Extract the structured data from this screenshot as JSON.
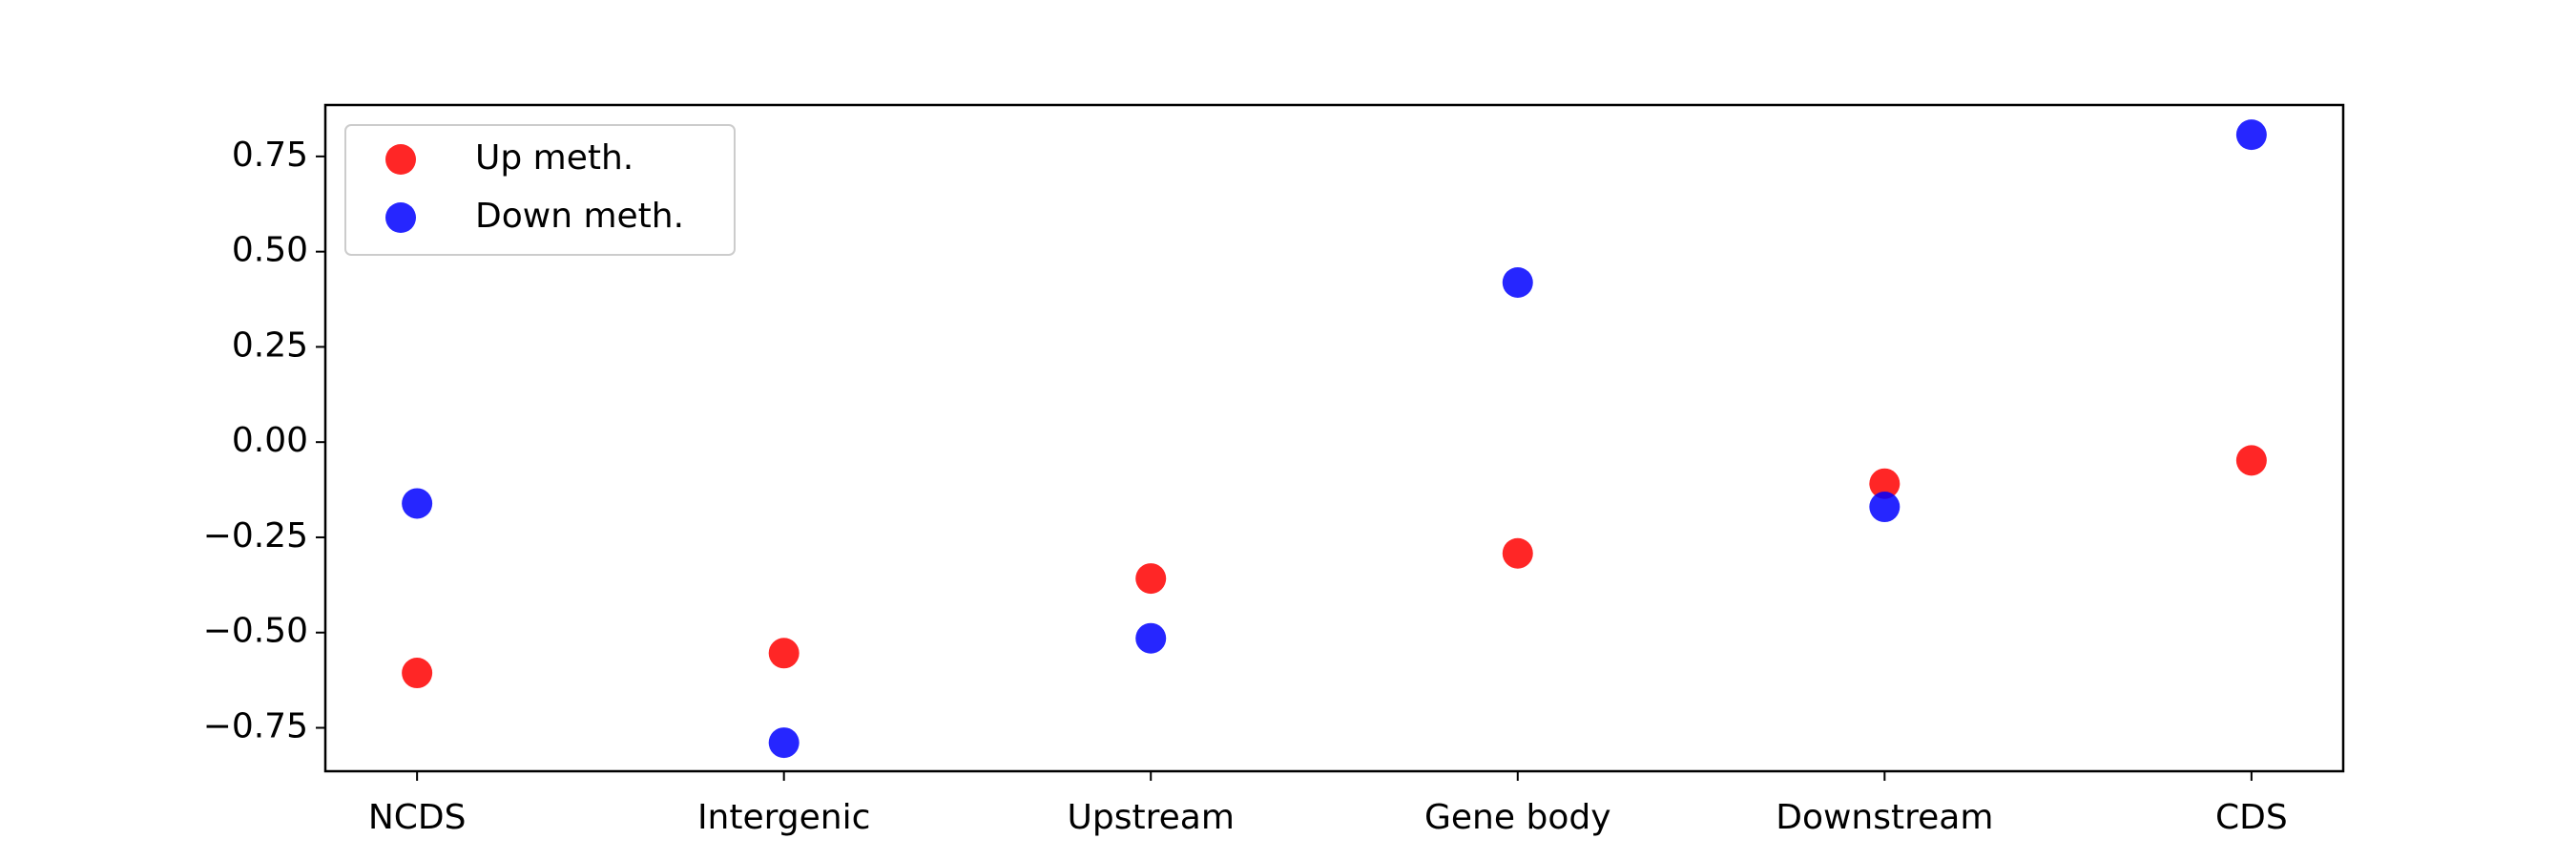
{
  "chart_data": {
    "type": "scatter",
    "categories": [
      "NCDS",
      "Intergenic",
      "Upstream",
      "Gene body",
      "Downstream",
      "CDS"
    ],
    "series": [
      {
        "name": "Up meth.",
        "color": "#ff0000",
        "values": [
          -0.606,
          -0.554,
          -0.358,
          -0.292,
          -0.109,
          -0.048
        ]
      },
      {
        "name": "Down meth.",
        "color": "#0000ff",
        "values": [
          -0.161,
          -0.789,
          -0.515,
          0.419,
          -0.17,
          0.807
        ]
      }
    ],
    "ylim": [
      -0.864,
      0.885
    ],
    "yticks": [
      {
        "value": -0.75,
        "label": "−0.75"
      },
      {
        "value": -0.5,
        "label": "−0.50"
      },
      {
        "value": -0.25,
        "label": "−0.25"
      },
      {
        "value": 0,
        "label": "0.00"
      },
      {
        "value": 0.25,
        "label": "0.25"
      },
      {
        "value": 0.5,
        "label": "0.50"
      },
      {
        "value": 0.75,
        "label": "0.75"
      }
    ],
    "legend": "upper left",
    "grid": false
  }
}
